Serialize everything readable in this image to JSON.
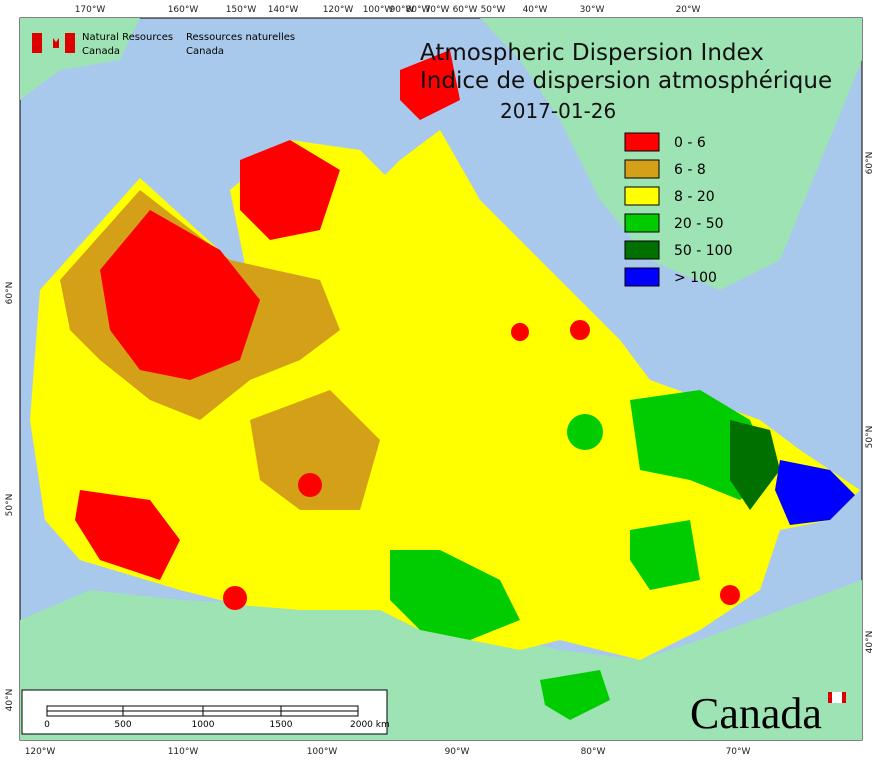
{
  "header": {
    "agency_en": [
      "Natural Resources",
      "Canada"
    ],
    "agency_fr": [
      "Ressources naturelles",
      "Canada"
    ],
    "title_en": "Atmospheric Dispersion Index",
    "title_fr": "Indice de dispersion atmosphérique",
    "date": "2017-01-26"
  },
  "legend": [
    {
      "label": "0 - 6",
      "color": "#ff0000"
    },
    {
      "label": "6 - 8",
      "color": "#d4a017"
    },
    {
      "label": "8 - 20",
      "color": "#ffff00"
    },
    {
      "label": "20 - 50",
      "color": "#00cc00"
    },
    {
      "label": "50 - 100",
      "color": "#007000"
    },
    {
      "label": "> 100",
      "color": "#0000ff"
    }
  ],
  "graticule": {
    "top": [
      "170°W",
      "160°W",
      "150°W",
      "140°W",
      "120°W",
      "100°W",
      "90°W",
      "80°W",
      "70°W",
      "60°W",
      "50°W",
      "40°W",
      "30°W",
      "20°W"
    ],
    "bottom": [
      "120°W",
      "110°W",
      "100°W",
      "90°W",
      "80°W",
      "70°W"
    ],
    "left": [
      "60°N",
      "50°N",
      "40°N"
    ],
    "right": [
      "60°N",
      "50°N",
      "40°N"
    ]
  },
  "scale_bar": [
    "0",
    "500",
    "1000",
    "1500",
    "2000 km"
  ],
  "wordmark": "Canada"
}
